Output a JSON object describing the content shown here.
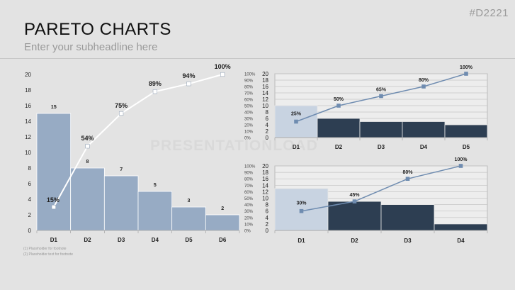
{
  "header": {
    "code": "#D2221",
    "title": "PARETO CHARTS",
    "subtitle": "Enter your subheadline here"
  },
  "footnotes": [
    "(1)   Placeholder for footnote",
    "(2)   Placeholder text for footnote"
  ],
  "watermark": "PRESENTATIONLOAD",
  "colors": {
    "background": "#e3e3e3",
    "bar_main": "#97abc4",
    "bar_light": "#c8d3e1",
    "bar_dark": "#2d3e52",
    "line_main": "#ffffff",
    "line_small": "#6f8cb0"
  },
  "chart_data": [
    {
      "type": "bar",
      "title": "",
      "categories": [
        "D1",
        "D2",
        "D3",
        "D4",
        "D5",
        "D6"
      ],
      "values": [
        15,
        8,
        7,
        5,
        3,
        2
      ],
      "value_labels": [
        "15",
        "8",
        "7",
        "5",
        "3",
        "2"
      ],
      "ylim": [
        0,
        20
      ],
      "yticks": [
        "0",
        "2",
        "4",
        "6",
        "8",
        "10",
        "12",
        "14",
        "16",
        "18",
        "20"
      ],
      "y2lim": [
        0,
        100
      ],
      "cumulative": [
        15,
        54,
        75,
        89,
        94,
        100
      ],
      "cumulative_labels": [
        "15%",
        "54%",
        "75%",
        "89%",
        "94%",
        "100%"
      ],
      "grid": false
    },
    {
      "type": "bar",
      "title": "",
      "categories": [
        "D1",
        "D2",
        "D3",
        "D4",
        "D5"
      ],
      "values": [
        10,
        6,
        5,
        5,
        4
      ],
      "ylim": [
        0,
        20
      ],
      "yticks": [
        "0",
        "2",
        "4",
        "6",
        "8",
        "10",
        "12",
        "14",
        "16",
        "18",
        "20"
      ],
      "y2lim": [
        0,
        100
      ],
      "y2ticks": [
        "0%",
        "10%",
        "20%",
        "30%",
        "40%",
        "50%",
        "60%",
        "70%",
        "80%",
        "90%",
        "100%"
      ],
      "cumulative": [
        25,
        50,
        65,
        80,
        100
      ],
      "cumulative_labels": [
        "25%",
        "50%",
        "65%",
        "80%",
        "100%"
      ],
      "grid": true
    },
    {
      "type": "bar",
      "title": "",
      "categories": [
        "D1",
        "D2",
        "D3",
        "D4"
      ],
      "values": [
        13,
        9,
        8,
        2
      ],
      "ylim": [
        0,
        20
      ],
      "yticks": [
        "0",
        "2",
        "4",
        "6",
        "8",
        "10",
        "12",
        "14",
        "16",
        "18",
        "20"
      ],
      "y2lim": [
        0,
        100
      ],
      "y2ticks": [
        "0%",
        "10%",
        "20%",
        "30%",
        "40%",
        "50%",
        "60%",
        "70%",
        "80%",
        "90%",
        "100%"
      ],
      "cumulative": [
        30,
        45,
        80,
        100
      ],
      "cumulative_labels": [
        "30%",
        "45%",
        "80%",
        "100%"
      ],
      "grid": true
    }
  ]
}
